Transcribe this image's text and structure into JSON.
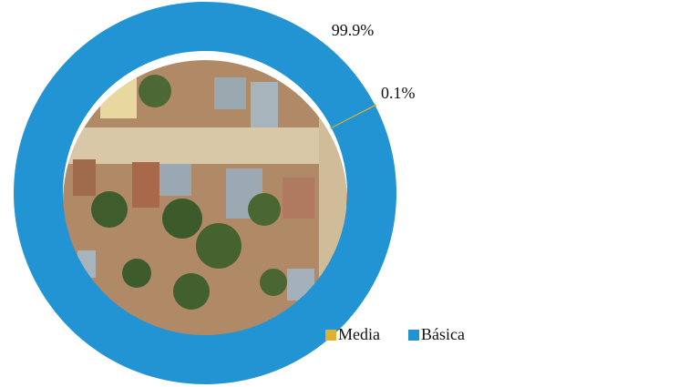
{
  "chart_data": {
    "type": "donut",
    "categories": [
      "Media",
      "Básica"
    ],
    "values": [
      0.1,
      99.9
    ],
    "value_labels": [
      "0.1%",
      "99.9%"
    ],
    "colors": [
      "#e0b030",
      "#2394d3"
    ],
    "legend": "bottom-right"
  }
}
